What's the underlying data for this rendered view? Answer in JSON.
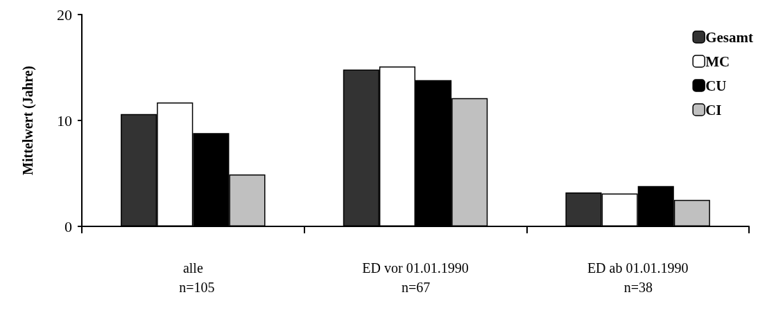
{
  "chart_data": {
    "type": "bar",
    "ylabel": "Mittelwert (Jahre)",
    "categories": [
      "alle",
      "ED vor 01.01.1990",
      "ED ab 01.01.1990"
    ],
    "series": [
      {
        "name": "Gesamt",
        "color": "#333333",
        "values": [
          10.6,
          14.8,
          3.2
        ]
      },
      {
        "name": "MC",
        "color": "#ffffff",
        "values": [
          11.7,
          15.1,
          3.1
        ]
      },
      {
        "name": "CU",
        "color": "#000000",
        "values": [
          8.8,
          13.8,
          3.8
        ]
      },
      {
        "name": "CI",
        "color": "#c0c0c0",
        "values": [
          4.9,
          12.1,
          2.5
        ]
      }
    ],
    "ylim": [
      0,
      20
    ],
    "yticks": [
      0,
      10,
      20
    ],
    "grid": false,
    "legend": "top right",
    "annotations": [
      "n=105",
      "n=67",
      "n=38"
    ]
  }
}
